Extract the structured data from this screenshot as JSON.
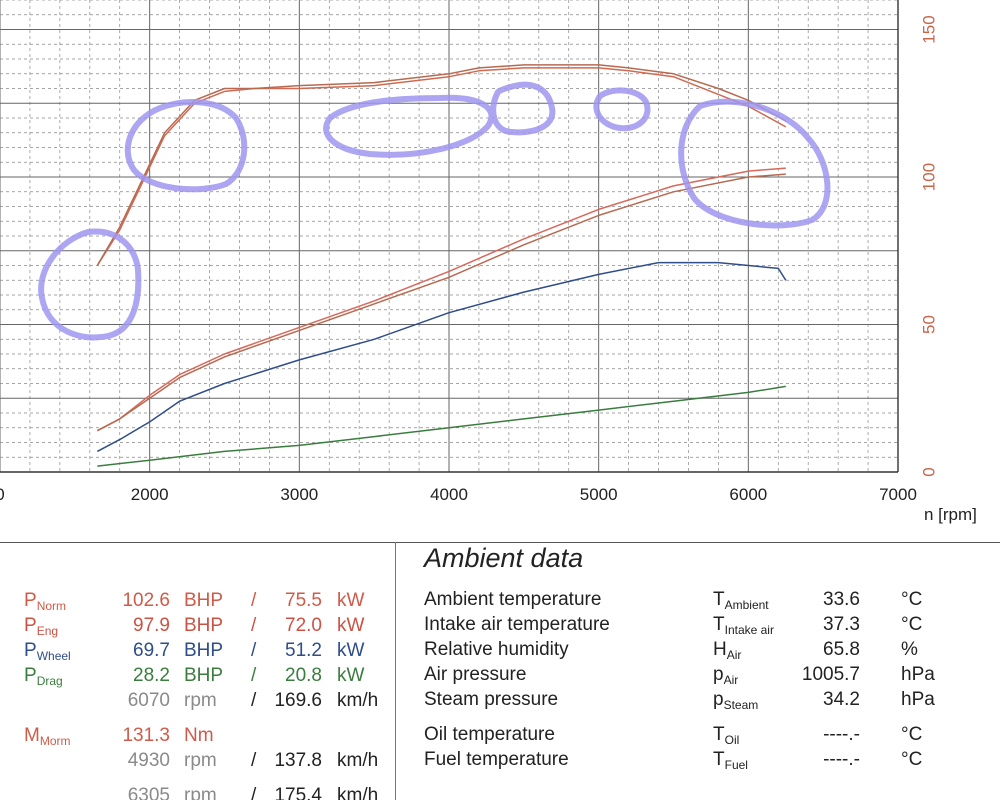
{
  "chart_data": {
    "type": "line",
    "xlabel": "n [rpm]",
    "x_ticks": [
      0,
      2000,
      3000,
      4000,
      5000,
      6000,
      7000
    ],
    "y_right_ticks": [
      0,
      50,
      100,
      150
    ],
    "xlim": [
      1000,
      7000
    ],
    "ylim": [
      0,
      160
    ],
    "grid": true,
    "series": [
      {
        "key": "torque_a",
        "color": "#cf6a52",
        "x": [
          1650,
          1800,
          1950,
          2100,
          2300,
          2500,
          2700,
          3000,
          3500,
          4000,
          4200,
          4500,
          4800,
          5000,
          5200,
          5500,
          5800,
          6000,
          6250
        ],
        "y": [
          70,
          82,
          98,
          114,
          125,
          129,
          130,
          130,
          131,
          134,
          136,
          137,
          137,
          137,
          136,
          134,
          128,
          124,
          117
        ]
      },
      {
        "key": "torque_b",
        "color": "#b86a50",
        "x": [
          1650,
          1800,
          1950,
          2100,
          2300,
          2500,
          2700,
          3000,
          3500,
          4000,
          4200,
          4500,
          4800,
          5000,
          5200,
          5500,
          5800,
          6000,
          6250
        ],
        "y": [
          70,
          83,
          99,
          115,
          126,
          130,
          130,
          131,
          132,
          135,
          137,
          138,
          138,
          138,
          137,
          135,
          130,
          126,
          119
        ]
      },
      {
        "key": "power_norm",
        "color": "#d8685a",
        "x": [
          1650,
          1800,
          2000,
          2200,
          2500,
          3000,
          3500,
          4000,
          4500,
          5000,
          5500,
          6000,
          6250
        ],
        "y": [
          14,
          18,
          26,
          33,
          40,
          49,
          58,
          68,
          79,
          89,
          97,
          102,
          103
        ]
      },
      {
        "key": "power_eng",
        "color": "#b86a50",
        "x": [
          1650,
          1800,
          2000,
          2200,
          2500,
          3000,
          3500,
          4000,
          4500,
          5000,
          5500,
          6000,
          6250
        ],
        "y": [
          14,
          18,
          25,
          32,
          39,
          48,
          57,
          66,
          77,
          87,
          95,
          100,
          101
        ]
      },
      {
        "key": "power_wheel",
        "color": "#2f4d8a",
        "x": [
          1650,
          1800,
          2000,
          2200,
          2500,
          3000,
          3500,
          4000,
          4500,
          5000,
          5400,
          5800,
          6200,
          6250
        ],
        "y": [
          7,
          11,
          17,
          24,
          30,
          38,
          45,
          54,
          61,
          67,
          71,
          71,
          69,
          65
        ]
      },
      {
        "key": "power_drag",
        "color": "#3a7d3e",
        "x": [
          1650,
          2000,
          2500,
          3000,
          3500,
          4000,
          4500,
          5000,
          5500,
          6000,
          6250
        ],
        "y": [
          2,
          4,
          7,
          9,
          12,
          15,
          18,
          21,
          24,
          27,
          29
        ]
      }
    ]
  },
  "power": {
    "norm": {
      "label": "P",
      "sub": "Norm",
      "bhp": "102.6",
      "bhp_unit": "BHP",
      "sep": "/",
      "kw": "75.5",
      "kw_unit": "kW"
    },
    "eng": {
      "label": "P",
      "sub": "Eng",
      "bhp": "97.9",
      "bhp_unit": "BHP",
      "sep": "/",
      "kw": "72.0",
      "kw_unit": "kW"
    },
    "wheel": {
      "label": "P",
      "sub": "Wheel",
      "bhp": "69.7",
      "bhp_unit": "BHP",
      "sep": "/",
      "kw": "51.2",
      "kw_unit": "kW"
    },
    "drag": {
      "label": "P",
      "sub": "Drag",
      "bhp": "28.2",
      "bhp_unit": "BHP",
      "sep": "/",
      "kw": "20.8",
      "kw_unit": "kW"
    },
    "rpm1": {
      "rpm": "6070",
      "rpm_unit": "rpm",
      "sep": "/",
      "speed": "169.6",
      "speed_unit": "km/h"
    },
    "torque": {
      "label": "M",
      "sub": "Morm",
      "value": "131.3",
      "unit": "Nm"
    },
    "rpm2": {
      "rpm": "4930",
      "rpm_unit": "rpm",
      "sep": "/",
      "speed": "137.8",
      "speed_unit": "km/h"
    },
    "rpm3": {
      "rpm": "6305",
      "rpm_unit": "rpm",
      "sep": "/",
      "speed": "175.4",
      "speed_unit": "km/h"
    }
  },
  "ambient": {
    "title": "Ambient data",
    "rows": [
      {
        "label": "Ambient temperature",
        "sym": "T",
        "sub": "Ambient",
        "value": "33.6",
        "unit": "°C"
      },
      {
        "label": "Intake air temperature",
        "sym": "T",
        "sub": "Intake air",
        "value": "37.3",
        "unit": "°C"
      },
      {
        "label": "Relative humidity",
        "sym": "H",
        "sub": "Air",
        "value": "65.8",
        "unit": "%"
      },
      {
        "label": "Air pressure",
        "sym": "p",
        "sub": "Air",
        "value": "1005.7",
        "unit": "hPa"
      },
      {
        "label": "Steam pressure",
        "sym": "p",
        "sub": "Steam",
        "value": "34.2",
        "unit": "hPa"
      },
      {
        "label": "Oil temperature",
        "sym": "T",
        "sub": "Oil",
        "value": "----.-",
        "unit": "°C"
      },
      {
        "label": "Fuel temperature",
        "sym": "T",
        "sub": "Fuel",
        "value": "----.-",
        "unit": "°C"
      }
    ]
  }
}
